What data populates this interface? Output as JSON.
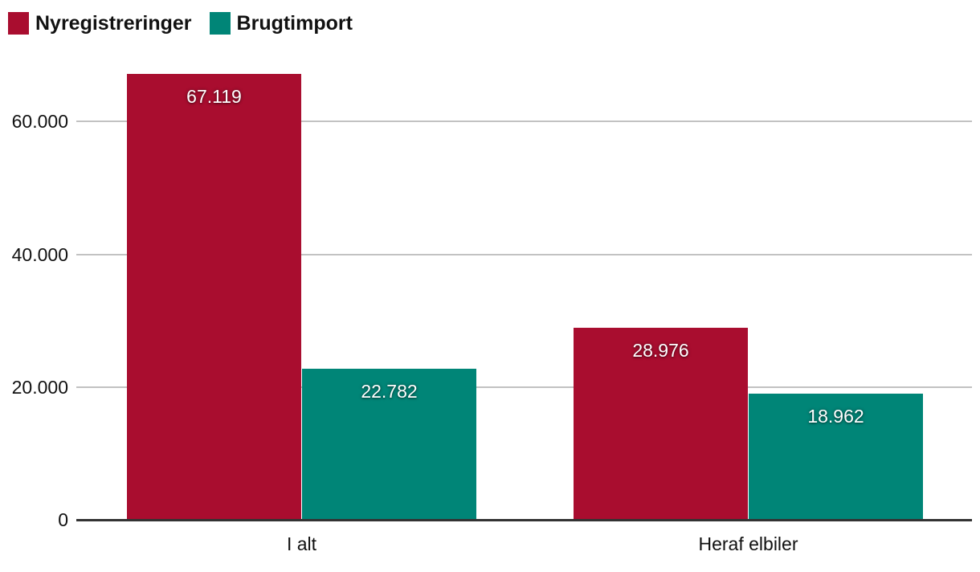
{
  "chart_data": {
    "type": "bar",
    "title": "",
    "categories": [
      "I alt",
      "Heraf elbiler"
    ],
    "series": [
      {
        "name": "Nyregistreringer",
        "color": "#a90d2f",
        "values": [
          67119,
          28976
        ],
        "value_labels": [
          "67.119",
          "28.976"
        ]
      },
      {
        "name": "Brugtimport",
        "color": "#008577",
        "values": [
          22782,
          18962
        ],
        "value_labels": [
          "22.782",
          "18.962"
        ]
      }
    ],
    "yaxis": {
      "ticks": [
        {
          "value": 0,
          "label": "0"
        },
        {
          "value": 20000,
          "label": "20.000"
        },
        {
          "value": 40000,
          "label": "40.000"
        },
        {
          "value": 60000,
          "label": "60.000"
        }
      ],
      "range": [
        0,
        70000
      ]
    },
    "grid": true,
    "legend_position": "top-left",
    "colors": {
      "grid": "#c2c2c2",
      "axis": "#333333",
      "label_text": "#111111",
      "value_text": "#ffffff"
    }
  }
}
